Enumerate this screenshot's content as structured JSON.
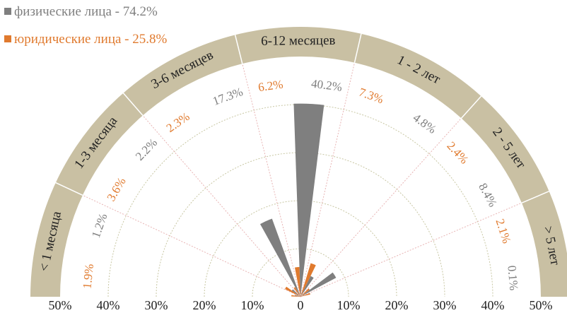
{
  "chart_data": {
    "type": "polar-bar",
    "title": "",
    "legend_position": "top-left",
    "series": [
      {
        "name": "физические лица - 74.2%",
        "color": "#7f7f7f",
        "values": [
          1.2,
          2.2,
          17.3,
          40.2,
          4.8,
          8.4,
          0.1
        ]
      },
      {
        "name": "юридические лица - 25.8%",
        "color": "#e07a2e",
        "values": [
          1.9,
          3.6,
          2.3,
          6.2,
          7.3,
          2.4,
          2.1
        ]
      }
    ],
    "categories": [
      "< 1 месяца",
      "1-3 месяца",
      "3-6 месяцев",
      "6-12 месяцев",
      "1 - 2 лет",
      "2 - 5 лет",
      "> 5 лет"
    ],
    "series_labels": [
      [
        "1.2%",
        "2.2%",
        "17.3%",
        "40.2%",
        "4.8%",
        "8.4%",
        "0.1%"
      ],
      [
        "1.9%",
        "3.6%",
        "2.3%",
        "6.2%",
        "7.3%",
        "2.4%",
        "2.1%"
      ]
    ],
    "axis_ticks_left": [
      "50%",
      "40%",
      "30%",
      "20%",
      "10%"
    ],
    "axis_tick_center": "0",
    "axis_ticks_right": [
      "10%",
      "20%",
      "30%",
      "40%",
      "50%"
    ],
    "rmax": 50,
    "band_color": "#c9c0a3",
    "grid": true
  }
}
